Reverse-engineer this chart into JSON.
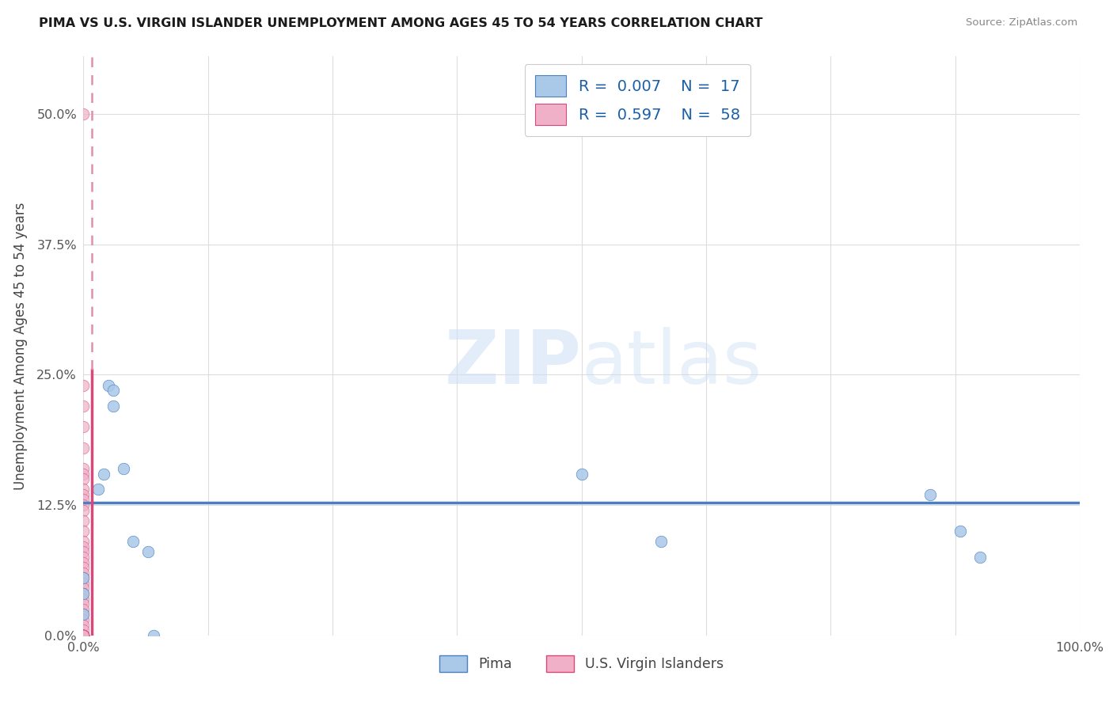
{
  "title": "PIMA VS U.S. VIRGIN ISLANDER UNEMPLOYMENT AMONG AGES 45 TO 54 YEARS CORRELATION CHART",
  "source": "Source: ZipAtlas.com",
  "ylabel": "Unemployment Among Ages 45 to 54 years",
  "xlim": [
    0.0,
    1.0
  ],
  "ylim": [
    0.0,
    0.555
  ],
  "xticks": [
    0.0,
    0.125,
    0.25,
    0.375,
    0.5,
    0.625,
    0.75,
    0.875,
    1.0
  ],
  "xticklabels": [
    "0.0%",
    "",
    "",
    "",
    "",
    "",
    "",
    "",
    "100.0%"
  ],
  "yticks": [
    0.0,
    0.125,
    0.25,
    0.375,
    0.5
  ],
  "yticklabels": [
    "0.0%",
    "12.5%",
    "25.0%",
    "37.5%",
    "50.0%"
  ],
  "legend1_label": "R =  0.007    N =  17",
  "legend2_label": "R =  0.597    N =  58",
  "blue_color": "#aac8e8",
  "pink_color": "#f0b0c8",
  "blue_edge_color": "#4a80c0",
  "pink_edge_color": "#d84878",
  "trendline_blue_color": "#4a80c0",
  "trendline_pink_solid_color": "#d84878",
  "trendline_pink_dashed_color": "#e090a8",
  "watermark_color": "#ccdff5",
  "blue_scatter_x": [
    0.0,
    0.0,
    0.0,
    0.015,
    0.02,
    0.025,
    0.03,
    0.03,
    0.04,
    0.05,
    0.065,
    0.07,
    0.5,
    0.58,
    0.85,
    0.88,
    0.9
  ],
  "blue_scatter_y": [
    0.02,
    0.04,
    0.055,
    0.14,
    0.155,
    0.24,
    0.235,
    0.22,
    0.16,
    0.09,
    0.08,
    0.0,
    0.155,
    0.09,
    0.135,
    0.1,
    0.075
  ],
  "pink_scatter_x": [
    0.0,
    0.0,
    0.0,
    0.0,
    0.0,
    0.0,
    0.0,
    0.0,
    0.0,
    0.0,
    0.0,
    0.0,
    0.0,
    0.0,
    0.0,
    0.0,
    0.0,
    0.0,
    0.0,
    0.0,
    0.0,
    0.0,
    0.0,
    0.0,
    0.0,
    0.0,
    0.0,
    0.0,
    0.0,
    0.0,
    0.0,
    0.0,
    0.0,
    0.0,
    0.0,
    0.0,
    0.0,
    0.0,
    0.0,
    0.0,
    0.0,
    0.0,
    0.0,
    0.0,
    0.0,
    0.0,
    0.0,
    0.0,
    0.0,
    0.0,
    0.0,
    0.0,
    0.0,
    0.0,
    0.0,
    0.0,
    0.0,
    0.0
  ],
  "pink_scatter_y": [
    0.5,
    0.24,
    0.22,
    0.2,
    0.18,
    0.16,
    0.155,
    0.15,
    0.14,
    0.135,
    0.13,
    0.125,
    0.12,
    0.11,
    0.1,
    0.09,
    0.085,
    0.08,
    0.075,
    0.07,
    0.065,
    0.06,
    0.055,
    0.05,
    0.045,
    0.04,
    0.035,
    0.03,
    0.025,
    0.02,
    0.015,
    0.01,
    0.005,
    0.0,
    0.0,
    0.0,
    0.0,
    0.0,
    0.0,
    0.0,
    0.0,
    0.0,
    0.0,
    0.0,
    0.0,
    0.0,
    0.0,
    0.0,
    0.0,
    0.0,
    0.0,
    0.0,
    0.0,
    0.0,
    0.0,
    0.0,
    0.0,
    0.0
  ],
  "blue_trendline_y": 0.127,
  "pink_trendline_solid_x": 0.008,
  "pink_trendline_solid_y0": 0.0,
  "pink_trendline_solid_y1": 0.255,
  "pink_trendline_dashed_y1": 0.555,
  "legend_text_color": "#1a5faa",
  "bottom_legend_labels": [
    "Pima",
    "U.S. Virgin Islanders"
  ]
}
